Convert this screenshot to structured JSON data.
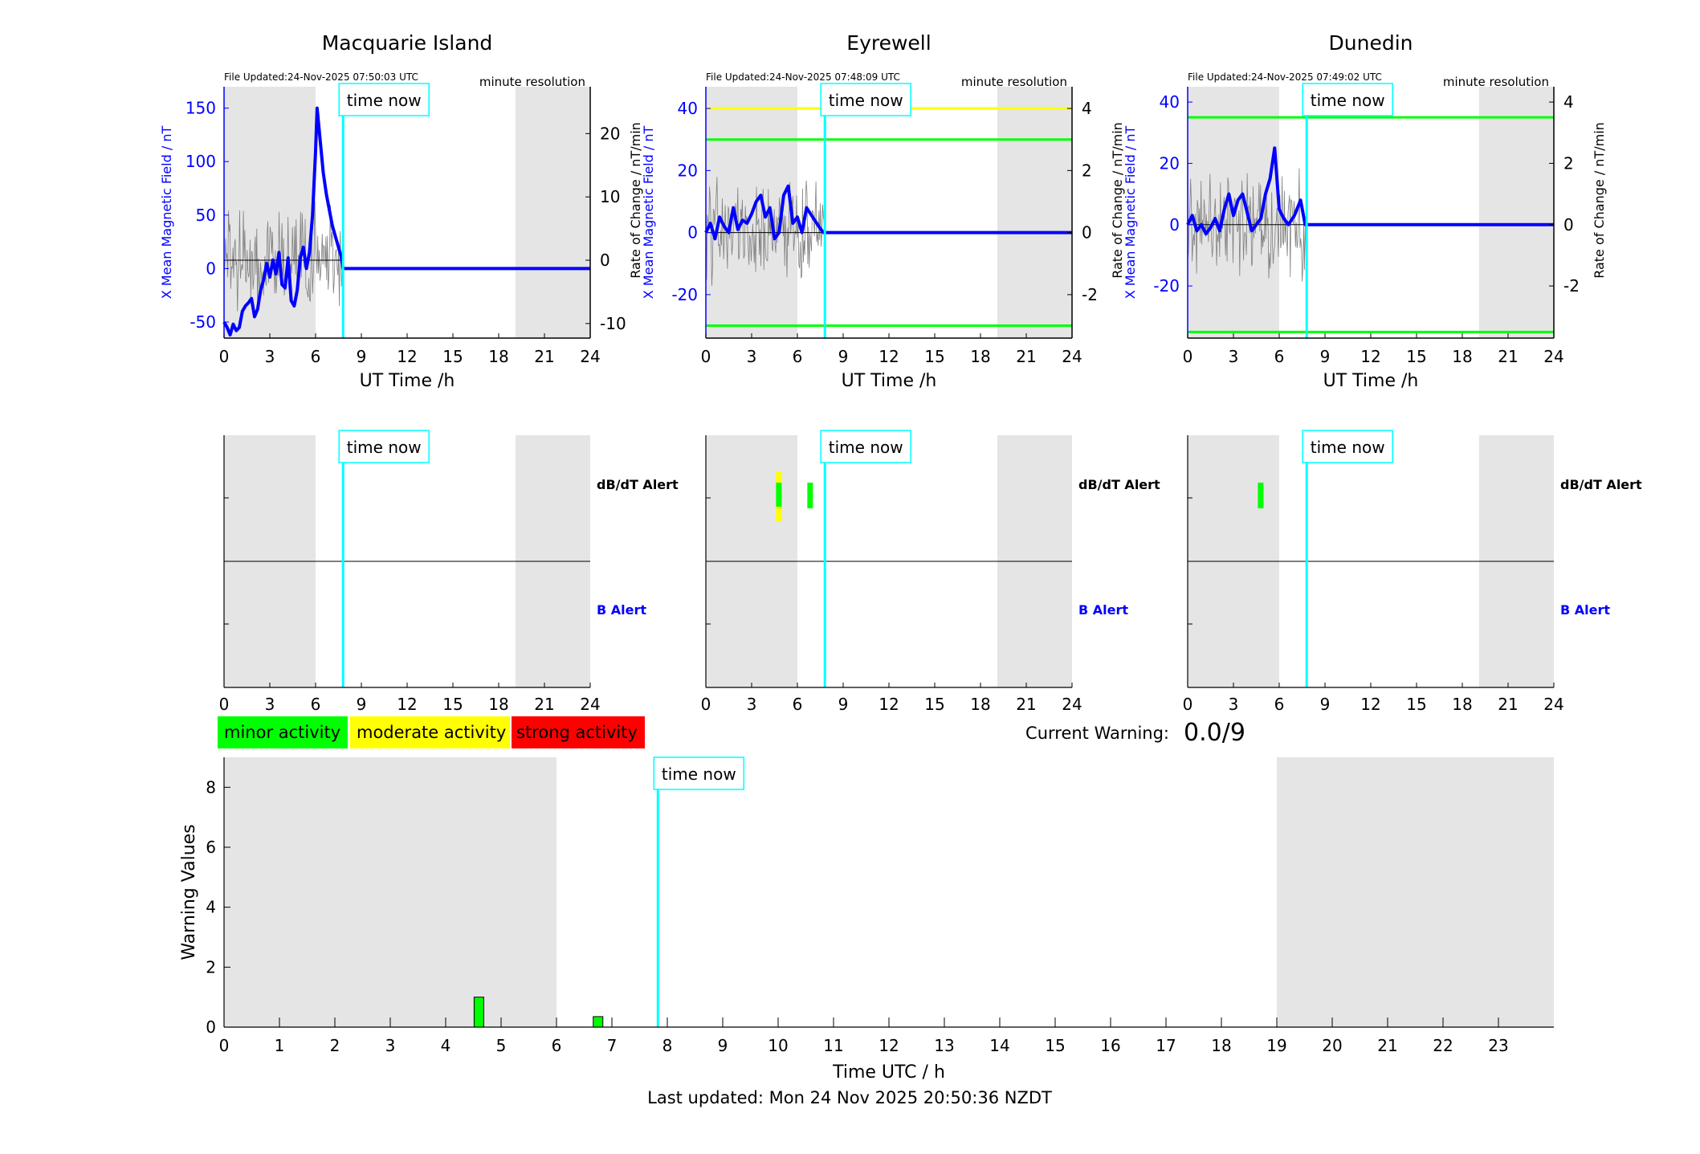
{
  "time_now_label": "time now",
  "resolution_label": "minute resolution",
  "xlabel_station": "UT Time /h",
  "ylabel_left": "X Mean Magnetic Field / nT",
  "ylabel_right": "Rate of Change / nT/min",
  "alert_dbdt_label": "dB/dT Alert",
  "alert_b_label": "B Alert",
  "legend": [
    {
      "label": "minor activity",
      "color": "#00ff00"
    },
    {
      "label": "moderate activity",
      "color": "#ffff00"
    },
    {
      "label": "strong activity",
      "color": "#ff0000"
    }
  ],
  "current_warning_label": "Current Warning:",
  "current_warning_value": "0.0/9",
  "last_updated": "Last updated: Mon 24 Nov 2025 20:50:36 NZDT",
  "colors": {
    "field_line": "#0000ff",
    "time_now": "#00ffff",
    "night_shade": "#e5e5e5",
    "rate_line": "#808080",
    "threshold_green": "#00ff00",
    "threshold_yellow": "#ffff00",
    "axis_blue": "#0000ff"
  },
  "chart_data": [
    {
      "type": "line",
      "title": "Macquarie Island",
      "file_updated": "File Updated:24-Nov-2025 07:50:03 UTC",
      "time_now_h": 7.8,
      "shade_ranges_h": [
        [
          0,
          6
        ],
        [
          19.1,
          24
        ]
      ],
      "xlim": [
        0,
        24
      ],
      "xticks": [
        0,
        3,
        6,
        9,
        12,
        15,
        18,
        21,
        24
      ],
      "ylim_left": [
        -65,
        170
      ],
      "yticks_left": [
        -50,
        0,
        50,
        100,
        150
      ],
      "ylim_right": [
        -12.3,
        27.4
      ],
      "yticks_right": [
        -10,
        0,
        10,
        20
      ],
      "thresholds": [],
      "series": [
        {
          "axis": "left",
          "x": [
            0,
            0.2,
            0.4,
            0.6,
            0.8,
            1.0,
            1.2,
            1.4,
            1.6,
            1.8,
            2.0,
            2.2,
            2.4,
            2.6,
            2.8,
            3.0,
            3.2,
            3.4,
            3.6,
            3.8,
            4.0,
            4.2,
            4.4,
            4.6,
            4.8,
            5.0,
            5.2,
            5.4,
            5.6,
            5.8,
            6.0,
            6.1,
            6.3,
            6.5,
            6.7,
            6.9,
            7.1,
            7.3,
            7.5,
            7.7,
            7.8,
            24
          ],
          "y": [
            -50,
            -55,
            -62,
            -52,
            -58,
            -55,
            -40,
            -35,
            -32,
            -28,
            -45,
            -38,
            -20,
            -10,
            5,
            -8,
            8,
            -5,
            15,
            -15,
            -18,
            10,
            -30,
            -35,
            -20,
            10,
            20,
            0,
            15,
            50,
            110,
            150,
            120,
            90,
            70,
            55,
            40,
            30,
            20,
            10,
            0,
            0
          ]
        }
      ]
    },
    {
      "type": "line",
      "title": "Eyrewell",
      "file_updated": "File Updated:24-Nov-2025 07:48:09 UTC",
      "time_now_h": 7.8,
      "shade_ranges_h": [
        [
          0,
          6
        ],
        [
          19.1,
          24
        ]
      ],
      "xlim": [
        0,
        24
      ],
      "xticks": [
        0,
        3,
        6,
        9,
        12,
        15,
        18,
        21,
        24
      ],
      "ylim_left": [
        -34,
        47
      ],
      "yticks_left": [
        -20,
        0,
        20,
        40
      ],
      "ylim_right": [
        -3.4,
        4.7
      ],
      "yticks_right": [
        -2,
        0,
        2,
        4
      ],
      "thresholds": [
        {
          "value": 40,
          "color": "#ffff00"
        },
        {
          "value": 30,
          "color": "#00ff00"
        },
        {
          "value": -30,
          "color": "#00ff00"
        }
      ],
      "series": [
        {
          "axis": "left",
          "x": [
            0,
            0.3,
            0.6,
            0.9,
            1.2,
            1.5,
            1.8,
            2.1,
            2.4,
            2.7,
            3.0,
            3.3,
            3.6,
            3.9,
            4.2,
            4.5,
            4.8,
            5.1,
            5.4,
            5.7,
            6.0,
            6.3,
            6.6,
            7.0,
            7.4,
            7.7,
            24
          ],
          "y": [
            0,
            3,
            -2,
            5,
            2,
            0,
            8,
            1,
            4,
            3,
            6,
            10,
            12,
            5,
            8,
            -2,
            0,
            12,
            15,
            3,
            5,
            0,
            8,
            5,
            2,
            0,
            0
          ]
        }
      ]
    },
    {
      "type": "line",
      "title": "Dunedin",
      "file_updated": "File Updated:24-Nov-2025 07:49:02 UTC",
      "time_now_h": 7.8,
      "shade_ranges_h": [
        [
          0,
          6
        ],
        [
          19.1,
          24
        ]
      ],
      "xlim": [
        0,
        24
      ],
      "xticks": [
        0,
        3,
        6,
        9,
        12,
        15,
        18,
        21,
        24
      ],
      "ylim_left": [
        -37,
        45
      ],
      "yticks_left": [
        -20,
        0,
        20,
        40
      ],
      "ylim_right": [
        -3.7,
        4.5
      ],
      "yticks_right": [
        -2,
        0,
        2,
        4
      ],
      "thresholds": [
        {
          "value": 35,
          "color": "#00ff00"
        },
        {
          "value": -35,
          "color": "#00ff00"
        }
      ],
      "series": [
        {
          "axis": "left",
          "x": [
            0,
            0.3,
            0.6,
            0.9,
            1.2,
            1.5,
            1.8,
            2.1,
            2.4,
            2.7,
            3.0,
            3.3,
            3.6,
            3.9,
            4.2,
            4.5,
            4.8,
            5.1,
            5.4,
            5.7,
            6.0,
            6.3,
            6.6,
            7.0,
            7.4,
            7.7,
            24
          ],
          "y": [
            0,
            3,
            -2,
            0,
            -3,
            -1,
            2,
            -2,
            5,
            10,
            3,
            8,
            10,
            4,
            -2,
            0,
            2,
            10,
            15,
            25,
            5,
            2,
            0,
            3,
            8,
            0,
            0
          ]
        }
      ]
    },
    {
      "type": "alert",
      "title": "",
      "time_now_h": 7.8,
      "shade_ranges_h": [
        [
          0,
          6
        ],
        [
          19.1,
          24
        ]
      ],
      "xticks": [
        0,
        3,
        6,
        9,
        12,
        15,
        18,
        21,
        24
      ],
      "alerts": []
    },
    {
      "type": "alert",
      "title": "",
      "time_now_h": 7.8,
      "shade_ranges_h": [
        [
          0,
          6
        ],
        [
          19.1,
          24
        ]
      ],
      "xticks": [
        0,
        3,
        6,
        9,
        12,
        15,
        18,
        21,
        24
      ],
      "alerts": [
        {
          "row": "dbdt",
          "x_start": 4.6,
          "x_end": 4.85,
          "color": "#ffff00"
        },
        {
          "row": "dbdt",
          "x_start": 4.6,
          "x_end": 4.85,
          "color": "#00ff00",
          "inner": true
        },
        {
          "row": "dbdt",
          "x_start": 6.65,
          "x_end": 6.85,
          "color": "#00ff00"
        }
      ]
    },
    {
      "type": "alert",
      "title": "",
      "time_now_h": 7.8,
      "shade_ranges_h": [
        [
          0,
          6
        ],
        [
          19.1,
          24
        ]
      ],
      "xticks": [
        0,
        3,
        6,
        9,
        12,
        15,
        18,
        21,
        24
      ],
      "alerts": [
        {
          "row": "dbdt",
          "x_start": 4.6,
          "x_end": 4.85,
          "color": "#00ff00"
        }
      ]
    },
    {
      "type": "bar",
      "title": "",
      "xlabel": "Time UTC / h",
      "ylabel": "Warning Values",
      "xlim": [
        0,
        24
      ],
      "xticks": [
        0,
        1,
        2,
        3,
        4,
        5,
        6,
        7,
        8,
        9,
        10,
        11,
        12,
        13,
        14,
        15,
        16,
        17,
        18,
        19,
        20,
        21,
        22,
        23
      ],
      "ylim": [
        0,
        9
      ],
      "yticks": [
        0,
        2,
        4,
        6,
        8
      ],
      "time_now_h": 7.83,
      "shade_ranges_h": [
        [
          0,
          6
        ],
        [
          19,
          24
        ]
      ],
      "bars": [
        {
          "x": 4.6,
          "value": 1.0,
          "color": "#00ff00"
        },
        {
          "x": 6.75,
          "value": 0.35,
          "color": "#00ff00"
        }
      ]
    }
  ]
}
